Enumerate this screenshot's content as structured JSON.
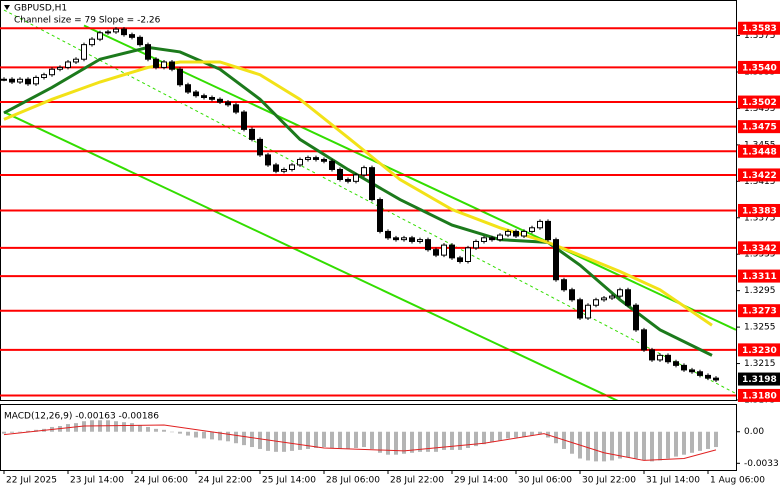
{
  "chart_data": {
    "type": "candlestick",
    "title": "GBPUSD,H1",
    "subtitle": "Channel size = 79 Slope = -2.26",
    "x": [
      0,
      2,
      4,
      6,
      8,
      10,
      12,
      14,
      16,
      18,
      20,
      22,
      24,
      26,
      28,
      30,
      32,
      34,
      36,
      38,
      40,
      42,
      44,
      46,
      48,
      50,
      52,
      54,
      56,
      58,
      60,
      62,
      64,
      66,
      68,
      70,
      72,
      74,
      76,
      78,
      80,
      82,
      84,
      86,
      88,
      90,
      92,
      94,
      96,
      98,
      100,
      102,
      104,
      106,
      108,
      110,
      112,
      114,
      116,
      118,
      120,
      122,
      124,
      126,
      128,
      130,
      132,
      134,
      136,
      138,
      140,
      142,
      144,
      146,
      148,
      150,
      152,
      154,
      156,
      158,
      160,
      162,
      164,
      166,
      168,
      170,
      172,
      174,
      176,
      178
    ],
    "close": [
      1.3527,
      1.3524,
      1.3527,
      1.3522,
      1.3529,
      1.3532,
      1.3538,
      1.354,
      1.3546,
      1.3549,
      1.3565,
      1.3571,
      1.3578,
      1.3579,
      1.3582,
      1.3576,
      1.3573,
      1.3565,
      1.3549,
      1.354,
      1.3546,
      1.3538,
      1.3521,
      1.3513,
      1.3509,
      1.3507,
      1.3505,
      1.3502,
      1.3499,
      1.3491,
      1.3472,
      1.3461,
      1.3444,
      1.3433,
      1.3426,
      1.3428,
      1.3433,
      1.3439,
      1.3441,
      1.3439,
      1.3437,
      1.3428,
      1.3417,
      1.3415,
      1.3422,
      1.343,
      1.3395,
      1.336,
      1.3353,
      1.3351,
      1.3353,
      1.3349,
      1.3351,
      1.334,
      1.3334,
      1.3345,
      1.3331,
      1.3327,
      1.3342,
      1.3349,
      1.3353,
      1.3351,
      1.3356,
      1.336,
      1.3355,
      1.336,
      1.3364,
      1.3371,
      1.3351,
      1.3307,
      1.3296,
      1.3285,
      1.3265,
      1.3279,
      1.3285,
      1.3287,
      1.3289,
      1.3296,
      1.3279,
      1.3252,
      1.323,
      1.3219,
      1.3224,
      1.3217,
      1.3213,
      1.3208,
      1.3206,
      1.3202,
      1.3199,
      1.3197
    ],
    "xlim": [
      -1,
      183
    ],
    "xticks": [
      {
        "value": 0,
        "label": "22 Jul 2025"
      },
      {
        "value": 16,
        "label": "23 Jul 14:00"
      },
      {
        "value": 32,
        "label": "24 Jul 06:00"
      },
      {
        "value": 48,
        "label": "24 Jul 22:00"
      },
      {
        "value": 64,
        "label": "25 Jul 14:00"
      },
      {
        "value": 80,
        "label": "28 Jul 06:00"
      },
      {
        "value": 96,
        "label": "28 Jul 22:00"
      },
      {
        "value": 112,
        "label": "29 Jul 14:00"
      },
      {
        "value": 128,
        "label": "30 Jul 06:00"
      },
      {
        "value": 144,
        "label": "30 Jul 22:00"
      },
      {
        "value": 160,
        "label": "31 Jul 14:00"
      },
      {
        "value": 176,
        "label": "1 Aug 06:00"
      }
    ],
    "ylim": [
      1.3175,
      1.3614
    ],
    "yticks": [
      1.3575,
      1.3535,
      1.3495,
      1.3455,
      1.3415,
      1.3375,
      1.3335,
      1.3295,
      1.3255,
      1.3215,
      1.3175
    ],
    "levels": {
      "color": "#ff0000",
      "values": [
        1.3583,
        {
          "value": 1.354,
          "label": "1.3540"
        },
        1.3502,
        1.3475,
        1.3448,
        1.3422,
        1.3383,
        1.3342,
        1.3311,
        1.3273,
        {
          "value": 1.323,
          "label": "1.3230"
        },
        {
          "value": 1.318,
          "label": "1.3180"
        }
      ]
    },
    "last_price": 1.3198,
    "moving_averages": [
      {
        "color": "#1c7a1c",
        "x": [
          0,
          12,
          24,
          36,
          44,
          54,
          64,
          74,
          86,
          99,
          112,
          124,
          136,
          144,
          154,
          164,
          177
        ],
        "values": [
          1.349,
          1.3518,
          1.3549,
          1.3562,
          1.3557,
          1.3538,
          1.3505,
          1.3461,
          1.3428,
          1.3395,
          1.3367,
          1.3351,
          1.3348,
          1.3323,
          1.3285,
          1.3252,
          1.3224
        ]
      },
      {
        "color": "#f2e218",
        "x": [
          0,
          12,
          24,
          36,
          44,
          54,
          64,
          74,
          86,
          99,
          112,
          124,
          136,
          144,
          154,
          164,
          177
        ],
        "values": [
          1.3483,
          1.3505,
          1.3524,
          1.354,
          1.3546,
          1.3546,
          1.3532,
          1.3505,
          1.3463,
          1.3417,
          1.3384,
          1.3364,
          1.3348,
          1.3334,
          1.3316,
          1.3296,
          1.3257
        ]
      }
    ],
    "channel": {
      "color": "#33dd00",
      "lines": [
        {
          "x": [
            20,
            183
          ],
          "values": [
            1.3586,
            1.3252
          ]
        },
        {
          "x": [
            0,
            183
          ],
          "values": [
            1.3603,
            1.3182
          ],
          "dashed": true
        },
        {
          "x": [
            0,
            183
          ],
          "values": [
            1.3491,
            1.3113
          ]
        }
      ]
    },
    "macd": {
      "label": "MACD(12,26,9) -0.00163 -0.00186",
      "ylim": [
        -0.004,
        0.0029
      ],
      "yticks": [
        {
          "value": 0,
          "label": "0.00"
        },
        -0.0033
      ],
      "histogram": {
        "color": "#b4b4b4",
        "values": [
          -0.0002,
          -0.0001,
          0,
          0.0001,
          0.0002,
          0.0003,
          0.0005,
          0.0006,
          0.0008,
          0.0009,
          0.0011,
          0.0012,
          0.0012,
          0.0012,
          0.0011,
          0.001,
          0.0009,
          0.0007,
          0.0005,
          0.0003,
          0.0002,
          0,
          -0.0002,
          -0.0004,
          -0.0006,
          -0.0007,
          -0.0008,
          -0.0009,
          -0.001,
          -0.0012,
          -0.0014,
          -0.0016,
          -0.0018,
          -0.002,
          -0.0021,
          -0.0021,
          -0.002,
          -0.0019,
          -0.0018,
          -0.0017,
          -0.0016,
          -0.0017,
          -0.0018,
          -0.0018,
          -0.0017,
          -0.0016,
          -0.0018,
          -0.0022,
          -0.0024,
          -0.0024,
          -0.0023,
          -0.0022,
          -0.0021,
          -0.0021,
          -0.0021,
          -0.0019,
          -0.0019,
          -0.0019,
          -0.0017,
          -0.0015,
          -0.0013,
          -0.0011,
          -0.0009,
          -0.0007,
          -0.0006,
          -0.0005,
          -0.0004,
          -0.0003,
          -0.0006,
          -0.0012,
          -0.0018,
          -0.0023,
          -0.0028,
          -0.003,
          -0.0031,
          -0.0031,
          -0.003,
          -0.0028,
          -0.0027,
          -0.0028,
          -0.003,
          -0.0031,
          -0.003,
          -0.0028,
          -0.0026,
          -0.0024,
          -0.0022,
          -0.002,
          -0.0018,
          -0.0016
        ]
      },
      "signal": {
        "color": "#e02020",
        "x": [
          0,
          20,
          40,
          60,
          80,
          100,
          120,
          135,
          150,
          160,
          170,
          178
        ],
        "values": [
          -0.0003,
          0.0006,
          0.0007,
          -0.0005,
          -0.0017,
          -0.002,
          -0.0012,
          -0.0002,
          -0.0022,
          -0.003,
          -0.0028,
          -0.0019
        ]
      }
    }
  }
}
